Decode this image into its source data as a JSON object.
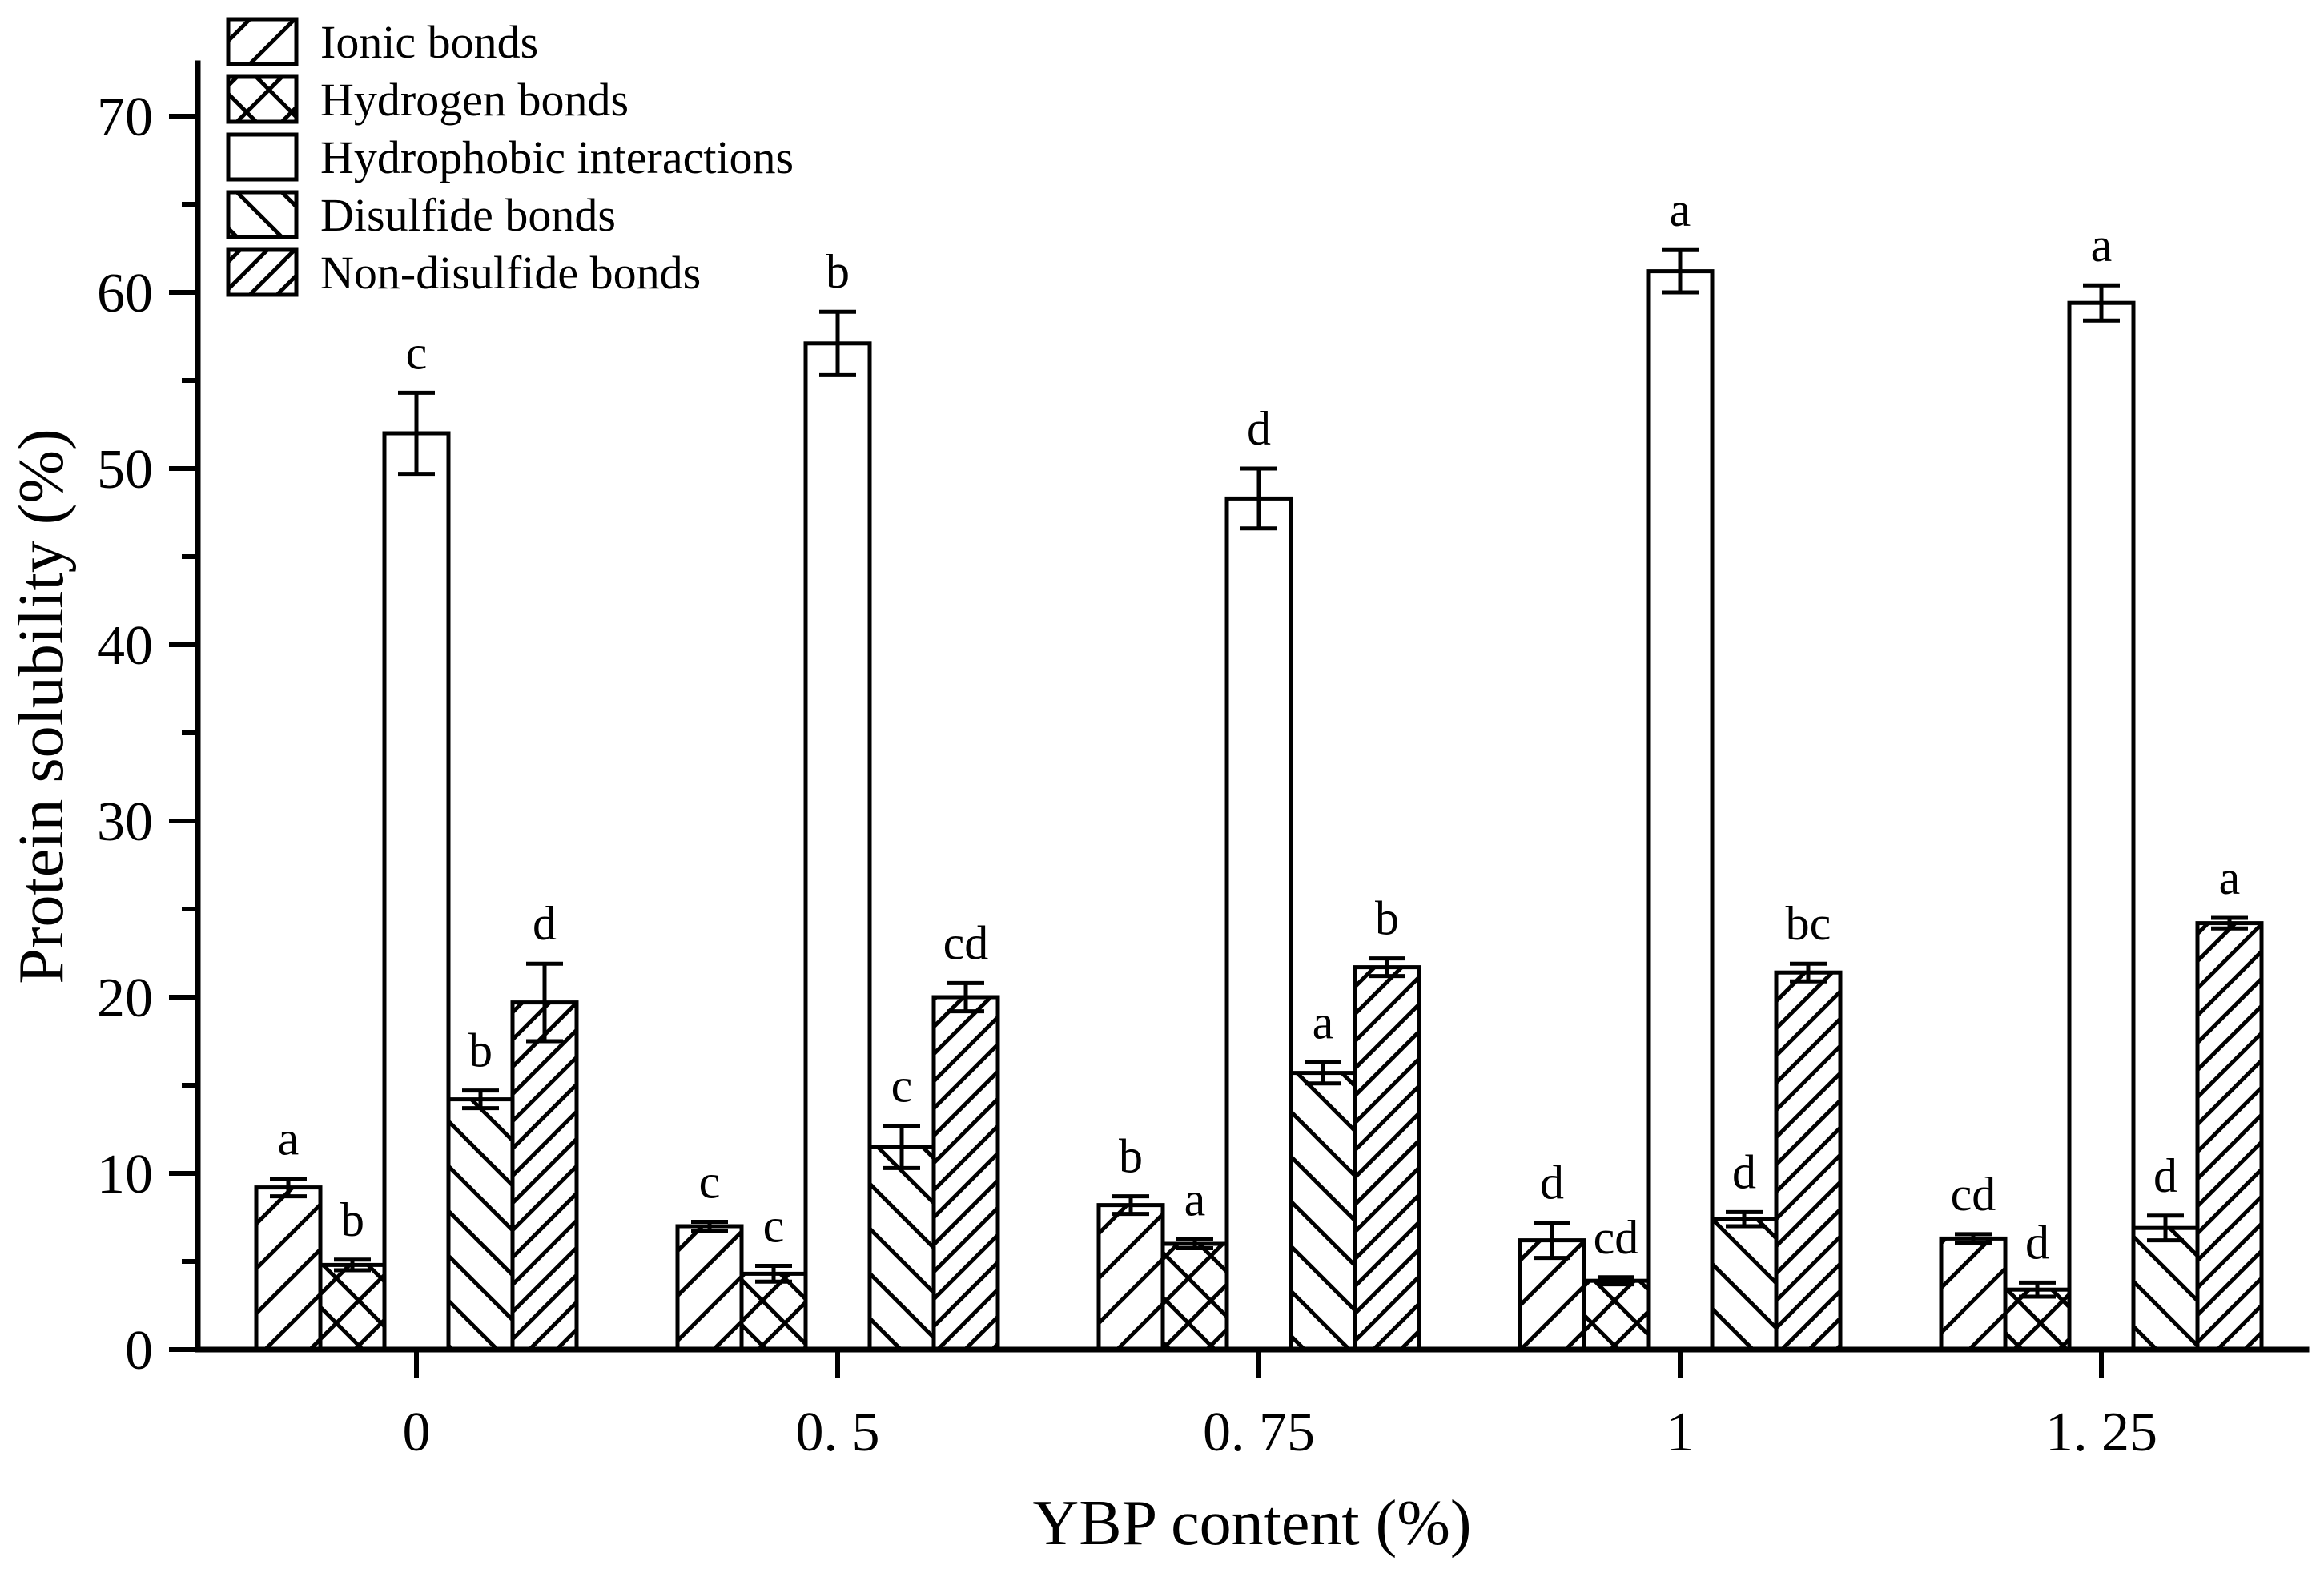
{
  "figure": {
    "background_color": "#ffffff",
    "ink_color": "#000000",
    "description": "Grouped bar chart of protein solubility by chemical bond type across YBP content levels, black-and-white hatched bars with error bars and significance letters"
  },
  "chart_data": {
    "type": "bar",
    "title": "",
    "xlabel": "YBP content (%)",
    "ylabel": "Protein solubility (%)",
    "categories": [
      "0",
      "0. 5",
      "0. 75",
      "1",
      "1. 25"
    ],
    "ylim": [
      0,
      73
    ],
    "yticks_major": [
      0,
      10,
      20,
      30,
      40,
      50,
      60,
      70
    ],
    "yticks_minor": [
      5,
      15,
      25,
      35,
      45,
      55,
      65
    ],
    "grid": false,
    "legend_position": "upper-left-inside",
    "error_bars": "plus-minus with caps",
    "series": [
      {
        "name": "Ionic bonds",
        "hatch": "diag-sparse",
        "values": [
          9.2,
          7.0,
          8.2,
          6.2,
          6.3
        ],
        "errors": [
          0.5,
          0.25,
          0.5,
          1.0,
          0.25
        ],
        "letters": [
          "a",
          "c",
          "b",
          "d",
          "cd"
        ]
      },
      {
        "name": "Hydrogen bonds",
        "hatch": "cross-diag",
        "values": [
          4.8,
          4.3,
          6.0,
          3.9,
          3.4
        ],
        "errors": [
          0.3,
          0.45,
          0.25,
          0.2,
          0.4
        ],
        "letters": [
          "b",
          "c",
          "a",
          "cd",
          "d"
        ]
      },
      {
        "name": "Hydrophobic interactions",
        "hatch": "none",
        "values": [
          52.0,
          57.1,
          48.3,
          61.2,
          59.4
        ],
        "errors": [
          2.3,
          1.8,
          1.7,
          1.2,
          1.0
        ],
        "letters": [
          "c",
          "b",
          "d",
          "a",
          "a"
        ]
      },
      {
        "name": "Disulfide bonds",
        "hatch": "back-diag",
        "values": [
          14.2,
          11.5,
          15.7,
          7.4,
          6.9
        ],
        "errors": [
          0.5,
          1.2,
          0.6,
          0.4,
          0.7
        ],
        "letters": [
          "b",
          "c",
          "a",
          "d",
          "d"
        ]
      },
      {
        "name": "Non-disulfide bonds",
        "hatch": "diag-dense",
        "values": [
          19.7,
          20.0,
          21.7,
          21.4,
          24.2
        ],
        "errors": [
          2.2,
          0.8,
          0.5,
          0.5,
          0.3
        ],
        "letters": [
          "d",
          "cd",
          "b",
          "bc",
          "a"
        ]
      }
    ]
  }
}
